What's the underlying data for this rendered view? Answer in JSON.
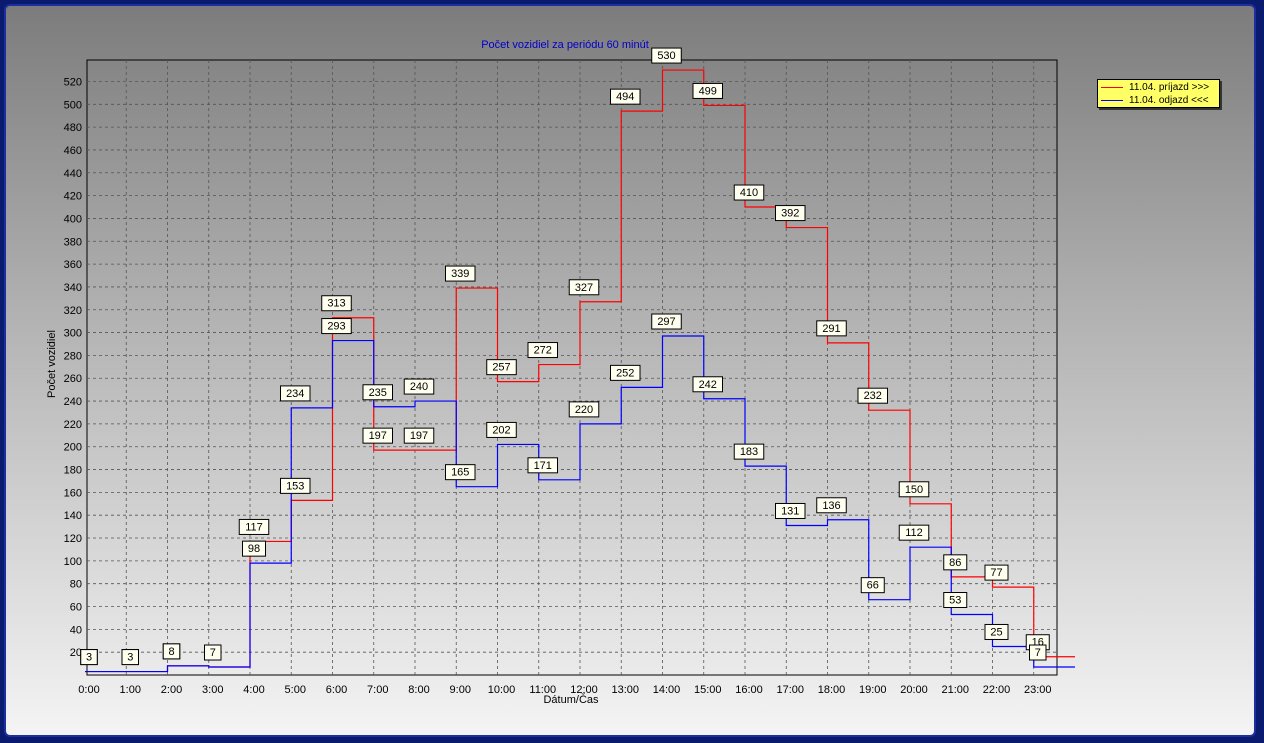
{
  "chart_data": {
    "type": "line",
    "step": true,
    "title": "Počet vozidiel za periódu 60 minút",
    "xlabel": "Dátum/Čas",
    "ylabel": "Počet vozidiel",
    "categories": [
      "0:00",
      "1:00",
      "2:00",
      "3:00",
      "4:00",
      "5:00",
      "6:00",
      "7:00",
      "8:00",
      "9:00",
      "10:00",
      "11:00",
      "12:00",
      "13:00",
      "14:00",
      "15:00",
      "16:00",
      "17:00",
      "18:00",
      "19:00",
      "20:00",
      "21:00",
      "22:00",
      "23:00"
    ],
    "y_ticks": [
      20,
      40,
      60,
      80,
      100,
      120,
      140,
      160,
      180,
      200,
      220,
      240,
      260,
      280,
      300,
      320,
      340,
      360,
      380,
      400,
      420,
      440,
      460,
      480,
      500,
      520
    ],
    "ylim": [
      0,
      530
    ],
    "grid": true,
    "legend_position": "top-right outside",
    "series": [
      {
        "name": "11.04.  príjazd >>>",
        "color": "#ff0000",
        "values": [
          3,
          3,
          8,
          7,
          117,
          153,
          313,
          197,
          197,
          339,
          257,
          272,
          327,
          494,
          530,
          499,
          410,
          392,
          291,
          232,
          150,
          86,
          77,
          16
        ]
      },
      {
        "name": "11.04.  odjazd <<<",
        "color": "#0000ff",
        "values": [
          3,
          3,
          8,
          7,
          98,
          234,
          293,
          235,
          240,
          165,
          202,
          171,
          220,
          252,
          297,
          242,
          183,
          131,
          136,
          66,
          112,
          53,
          25,
          7
        ]
      }
    ]
  }
}
